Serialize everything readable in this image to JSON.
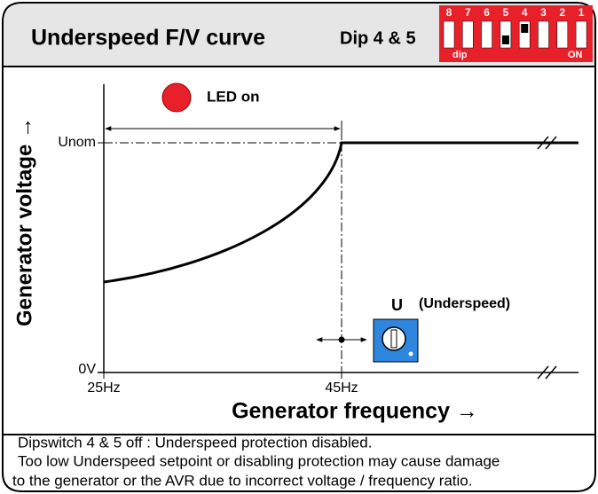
{
  "header": {
    "title": "Underspeed F/V curve",
    "dip_label": "Dip 4 & 5"
  },
  "dip": {
    "numbers": [
      "8",
      "7",
      "6",
      "5",
      "4",
      "3",
      "2",
      "1"
    ],
    "left": "dip",
    "right": "ON"
  },
  "diagram": {
    "led": "LED on",
    "y_axis_label": "Generator voltage →",
    "x_axis_label": "Generator frequency →",
    "y_ticks": [
      "Unom",
      "0V"
    ],
    "x_ticks": [
      "25Hz",
      "45Hz"
    ],
    "pot_letter": "U",
    "pot_note": "(Underspeed)"
  },
  "footer": [
    "Dipswitch 4 & 5 off : Underspeed protection disabled.",
    "Too low Underspeed setpoint or disabling protection may cause damage",
    "to the generator or the AVR due to incorrect voltage / frequency ratio."
  ]
}
